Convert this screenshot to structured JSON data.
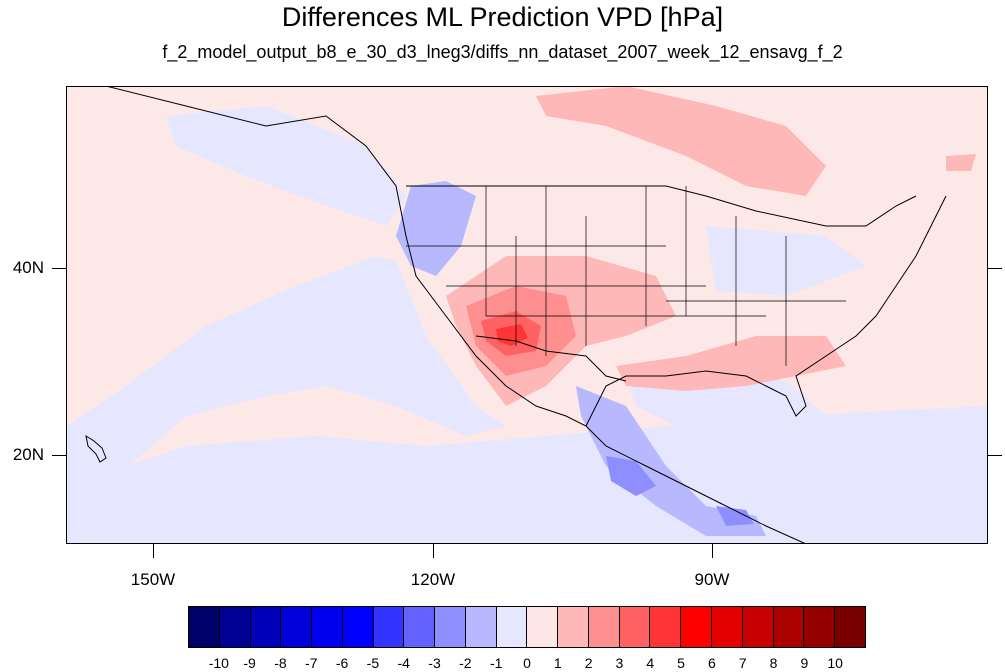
{
  "title": "Differences ML Prediction VPD [hPa]",
  "subtitle": "f_2_model_output_b8_e_30_d3_lneg3/diffs_nn_dataset_2007_week_12_ensavg_f_2",
  "map": {
    "lat_labels": [
      "40N",
      "20N"
    ],
    "lon_labels": [
      "150W",
      "120W",
      "90W"
    ],
    "background_color": "#fde8e8",
    "features": [
      "coastlines",
      "us-state-borders",
      "country-borders"
    ]
  },
  "colorbar": {
    "labels": [
      "-10",
      "-9",
      "-8",
      "-7",
      "-6",
      "-5",
      "-4",
      "-3",
      "-2",
      "-1",
      "0",
      "1",
      "2",
      "3",
      "4",
      "5",
      "6",
      "7",
      "8",
      "9",
      "10"
    ],
    "colors": [
      "#00006a",
      "#000094",
      "#0000b8",
      "#0000d8",
      "#0000ee",
      "#0000ff",
      "#3434ff",
      "#6262ff",
      "#8e8eff",
      "#b8b8ff",
      "#e6e6ff",
      "#ffe6e6",
      "#ffb8b8",
      "#ff8e8e",
      "#ff6262",
      "#ff3434",
      "#ff0000",
      "#e20000",
      "#c80000",
      "#aa0000",
      "#940000",
      "#7a0000"
    ]
  }
}
